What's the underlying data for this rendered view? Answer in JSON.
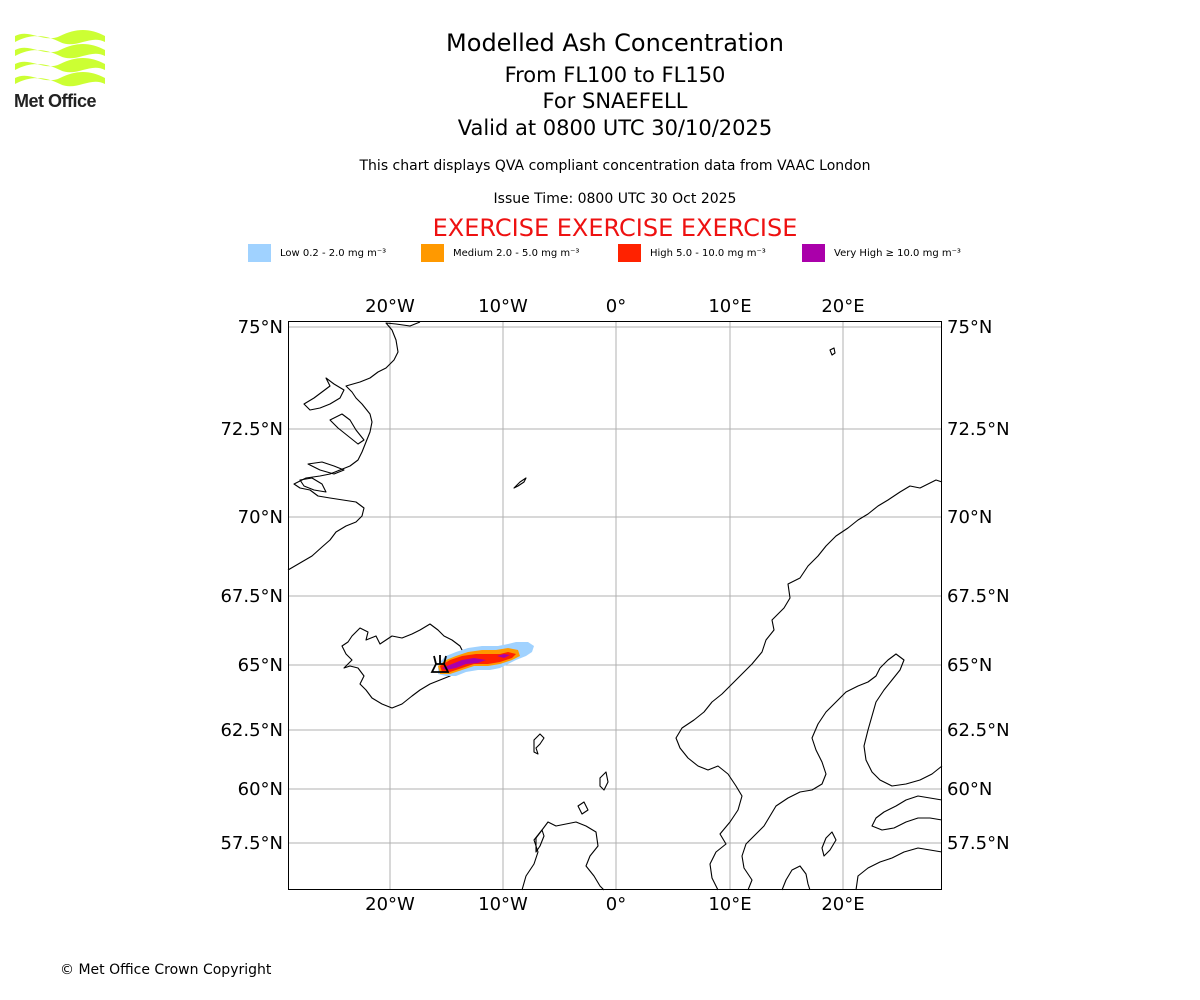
{
  "logo": {
    "wordmark": "Met Office",
    "color": "#ccff33"
  },
  "header": {
    "title": "Modelled Ash Concentration",
    "subtitle_levels": "From FL100 to FL150",
    "subtitle_volcano": "For SNAEFELL",
    "subtitle_valid": "Valid at 0800 UTC 30/10/2025",
    "description": "This chart displays QVA compliant concentration data from VAAC London",
    "issue_time": "Issue Time: 0800 UTC 30 Oct 2025",
    "exercise_banner": "EXERCISE EXERCISE EXERCISE"
  },
  "legend": [
    {
      "label": "Low 0.2 - 2.0 mg m⁻³",
      "color": "#a0d2ff"
    },
    {
      "label": "Medium 2.0 - 5.0 mg m⁻³",
      "color": "#ff9900"
    },
    {
      "label": "High 5.0 - 10.0 mg m⁻³",
      "color": "#ff2200"
    },
    {
      "label": "Very High ≥ 10.0 mg m⁻³",
      "color": "#aa00aa"
    }
  ],
  "map": {
    "lon_range": [
      -29,
      28
    ],
    "lat_range": [
      55.5,
      75
    ],
    "lon_ticks": [
      {
        "lon": -20,
        "label": "20°W"
      },
      {
        "lon": -10,
        "label": "10°W"
      },
      {
        "lon": 0,
        "label": "0°"
      },
      {
        "lon": 10,
        "label": "10°E"
      },
      {
        "lon": 20,
        "label": "20°E"
      }
    ],
    "lat_ticks": [
      {
        "lat": 75,
        "label": "75°N"
      },
      {
        "lat": 72.5,
        "label": "72.5°N"
      },
      {
        "lat": 70,
        "label": "70°N"
      },
      {
        "lat": 67.5,
        "label": "67.5°N"
      },
      {
        "lat": 65,
        "label": "65°N"
      },
      {
        "lat": 62.5,
        "label": "62.5°N"
      },
      {
        "lat": 60,
        "label": "60°N"
      },
      {
        "lat": 57.5,
        "label": "57.5°N"
      }
    ],
    "grid": true,
    "volcano_symbol": "volcano-icon"
  },
  "footer": {
    "copyright": "© Met Office Crown Copyright"
  }
}
